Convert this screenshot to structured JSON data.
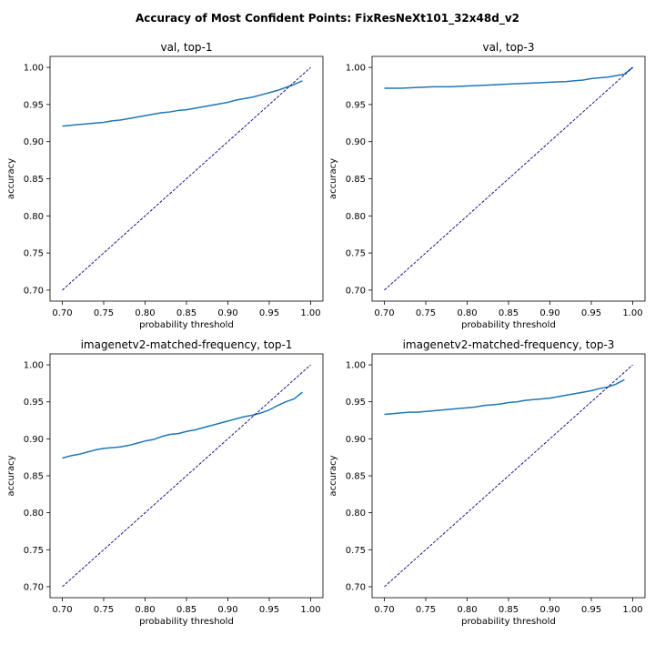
{
  "figure": {
    "title": "Accuracy of Most Confident Points: FixResNeXt101_32x48d_v2"
  },
  "colors": {
    "series_line": "#1f77b4",
    "reference_line": "#00008b",
    "axes": "#000000",
    "background": "#ffffff"
  },
  "chart_data": [
    {
      "type": "line",
      "title": "val, top-1",
      "xlabel": "probability threshold",
      "ylabel": "accuracy",
      "xlim": [
        0.7,
        1.0
      ],
      "ylim": [
        0.7,
        1.0
      ],
      "xticks": [
        "0.70",
        "0.75",
        "0.80",
        "0.85",
        "0.90",
        "0.95",
        "1.00"
      ],
      "yticks": [
        "0.70",
        "0.75",
        "0.80",
        "0.85",
        "0.90",
        "0.95",
        "1.00"
      ],
      "grid": false,
      "series": [
        {
          "x": [
            0.7,
            0.71,
            0.72,
            0.73,
            0.74,
            0.75,
            0.76,
            0.77,
            0.78,
            0.79,
            0.8,
            0.81,
            0.82,
            0.83,
            0.84,
            0.85,
            0.86,
            0.87,
            0.88,
            0.89,
            0.9,
            0.91,
            0.92,
            0.93,
            0.94,
            0.95,
            0.96,
            0.97,
            0.98,
            0.99
          ],
          "y": [
            0.921,
            0.922,
            0.923,
            0.924,
            0.925,
            0.926,
            0.928,
            0.929,
            0.931,
            0.933,
            0.935,
            0.937,
            0.939,
            0.94,
            0.942,
            0.943,
            0.945,
            0.947,
            0.949,
            0.951,
            0.953,
            0.956,
            0.958,
            0.96,
            0.963,
            0.966,
            0.969,
            0.973,
            0.977,
            0.982
          ]
        },
        {
          "x": [
            0.7,
            1.0
          ],
          "y": [
            0.7,
            1.0
          ],
          "style": "dashed"
        }
      ]
    },
    {
      "type": "line",
      "title": "val, top-3",
      "xlabel": "probability threshold",
      "ylabel": "accuracy",
      "xlim": [
        0.7,
        1.0
      ],
      "ylim": [
        0.7,
        1.0
      ],
      "xticks": [
        "0.70",
        "0.75",
        "0.80",
        "0.85",
        "0.90",
        "0.95",
        "1.00"
      ],
      "yticks": [
        "0.70",
        "0.75",
        "0.80",
        "0.85",
        "0.90",
        "0.95",
        "1.00"
      ],
      "grid": false,
      "series": [
        {
          "x": [
            0.7,
            0.72,
            0.74,
            0.76,
            0.78,
            0.8,
            0.82,
            0.84,
            0.86,
            0.88,
            0.9,
            0.92,
            0.94,
            0.95,
            0.96,
            0.97,
            0.98,
            0.99,
            1.0
          ],
          "y": [
            0.972,
            0.972,
            0.973,
            0.974,
            0.974,
            0.975,
            0.976,
            0.977,
            0.978,
            0.979,
            0.98,
            0.981,
            0.983,
            0.985,
            0.986,
            0.987,
            0.989,
            0.991,
            1.0
          ]
        },
        {
          "x": [
            0.7,
            1.0
          ],
          "y": [
            0.7,
            1.0
          ],
          "style": "dashed"
        }
      ]
    },
    {
      "type": "line",
      "title": "imagenetv2-matched-frequency, top-1",
      "xlabel": "probability threshold",
      "ylabel": "accuracy",
      "xlim": [
        0.7,
        1.0
      ],
      "ylim": [
        0.7,
        1.0
      ],
      "xticks": [
        "0.70",
        "0.75",
        "0.80",
        "0.85",
        "0.90",
        "0.95",
        "1.00"
      ],
      "yticks": [
        "0.70",
        "0.75",
        "0.80",
        "0.85",
        "0.90",
        "0.95",
        "1.00"
      ],
      "grid": false,
      "series": [
        {
          "x": [
            0.7,
            0.71,
            0.72,
            0.73,
            0.74,
            0.75,
            0.76,
            0.77,
            0.78,
            0.79,
            0.8,
            0.81,
            0.82,
            0.83,
            0.84,
            0.85,
            0.86,
            0.87,
            0.88,
            0.89,
            0.9,
            0.91,
            0.92,
            0.93,
            0.94,
            0.95,
            0.96,
            0.97,
            0.98,
            0.99
          ],
          "y": [
            0.874,
            0.877,
            0.879,
            0.882,
            0.885,
            0.887,
            0.888,
            0.889,
            0.891,
            0.894,
            0.897,
            0.899,
            0.903,
            0.906,
            0.907,
            0.91,
            0.912,
            0.915,
            0.918,
            0.921,
            0.924,
            0.927,
            0.93,
            0.932,
            0.935,
            0.939,
            0.945,
            0.95,
            0.954,
            0.963
          ]
        },
        {
          "x": [
            0.7,
            1.0
          ],
          "y": [
            0.7,
            1.0
          ],
          "style": "dashed"
        }
      ]
    },
    {
      "type": "line",
      "title": "imagenetv2-matched-frequency, top-3",
      "xlabel": "probability threshold",
      "ylabel": "accuracy",
      "xlim": [
        0.7,
        1.0
      ],
      "ylim": [
        0.7,
        1.0
      ],
      "xticks": [
        "0.70",
        "0.75",
        "0.80",
        "0.85",
        "0.90",
        "0.95",
        "1.00"
      ],
      "yticks": [
        "0.70",
        "0.75",
        "0.80",
        "0.85",
        "0.90",
        "0.95",
        "1.00"
      ],
      "grid": false,
      "series": [
        {
          "x": [
            0.7,
            0.71,
            0.72,
            0.73,
            0.74,
            0.75,
            0.76,
            0.77,
            0.78,
            0.79,
            0.8,
            0.81,
            0.82,
            0.83,
            0.84,
            0.85,
            0.86,
            0.87,
            0.88,
            0.89,
            0.9,
            0.91,
            0.92,
            0.93,
            0.94,
            0.95,
            0.96,
            0.97,
            0.98,
            0.99
          ],
          "y": [
            0.933,
            0.934,
            0.935,
            0.936,
            0.936,
            0.937,
            0.938,
            0.939,
            0.94,
            0.941,
            0.942,
            0.943,
            0.945,
            0.946,
            0.947,
            0.949,
            0.95,
            0.952,
            0.953,
            0.954,
            0.955,
            0.957,
            0.959,
            0.961,
            0.963,
            0.965,
            0.968,
            0.97,
            0.974,
            0.98
          ]
        },
        {
          "x": [
            0.7,
            1.0
          ],
          "y": [
            0.7,
            1.0
          ],
          "style": "dashed"
        }
      ]
    }
  ]
}
